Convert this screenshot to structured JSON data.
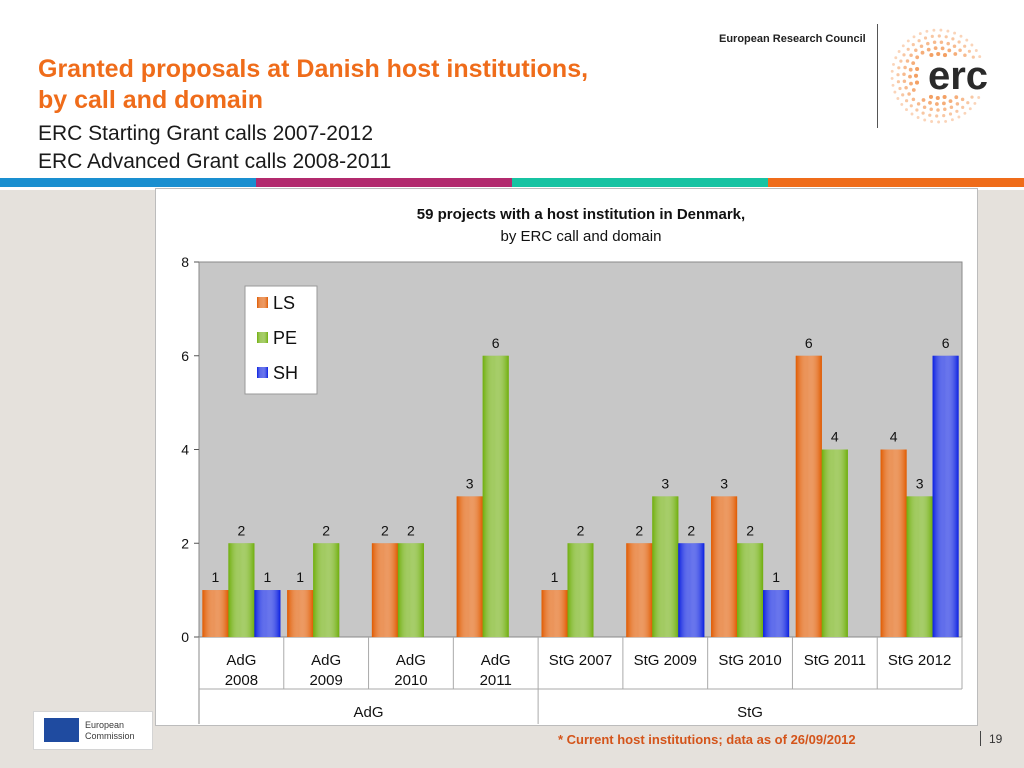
{
  "header": {
    "title_line1": "Granted proposals at Danish host institutions,",
    "title_line2": "by call and domain",
    "subtitle_line1": "ERC Starting Grant calls 2007-2012",
    "subtitle_line2": "ERC Advanced Grant calls 2008-2011",
    "org_name": "European Research Council",
    "logo_text": "erc",
    "band_colors": [
      "#1a8fd0",
      "#b22a6e",
      "#17c3a2",
      "#ef6c1a"
    ]
  },
  "footer": {
    "ec_logo_line1": "European",
    "ec_logo_line2": "Commission",
    "footnote": "* Current host institutions; data as of 26/09/2012",
    "page_number": "19"
  },
  "chart_data": {
    "type": "bar",
    "title": "59 projects with a host institution in Denmark,",
    "subtitle": "by ERC call and domain",
    "categories": [
      "AdG 2008",
      "AdG 2009",
      "AdG 2010",
      "AdG 2011",
      "StG 2007",
      "StG 2009",
      "StG 2010",
      "StG 2011",
      "StG 2012"
    ],
    "category_labels": [
      [
        "AdG",
        "2008"
      ],
      [
        "AdG",
        "2009"
      ],
      [
        "AdG",
        "2010"
      ],
      [
        "AdG",
        "2011"
      ],
      [
        "StG 2007"
      ],
      [
        "StG 2009"
      ],
      [
        "StG 2010"
      ],
      [
        "StG 2011"
      ],
      [
        "StG 2012"
      ]
    ],
    "groups": [
      {
        "name": "AdG",
        "count": 4
      },
      {
        "name": "StG",
        "count": 5
      }
    ],
    "series": [
      {
        "name": "LS",
        "color": "#e05a00",
        "values": [
          1,
          1,
          2,
          3,
          1,
          2,
          3,
          6,
          4
        ]
      },
      {
        "name": "PE",
        "color": "#6fae0c",
        "values": [
          2,
          2,
          2,
          6,
          2,
          3,
          2,
          4,
          3
        ]
      },
      {
        "name": "SH",
        "color": "#0a1fe0",
        "values": [
          1,
          null,
          null,
          null,
          null,
          2,
          1,
          null,
          6
        ]
      }
    ],
    "ylim": [
      0,
      8
    ],
    "yticks": [
      0,
      2,
      4,
      6,
      8
    ],
    "grid": false,
    "legend_position": "top-left"
  }
}
